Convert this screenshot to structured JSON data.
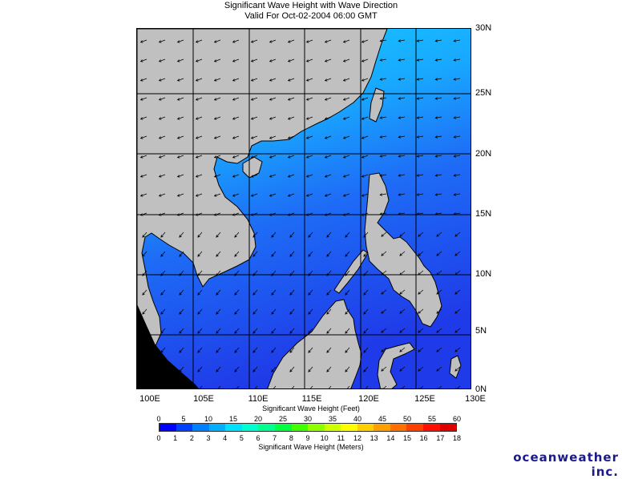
{
  "header": {
    "title": "Significant Wave Height with Wave Direction",
    "valid": "Valid For Oct-02-2004 06:00 GMT"
  },
  "map": {
    "lon_labels": [
      "100E",
      "105E",
      "110E",
      "115E",
      "120E",
      "125E",
      "130E"
    ],
    "lat_labels": [
      "30N",
      "25N",
      "20N",
      "15N",
      "10N",
      "5N",
      "0N"
    ],
    "colors": {
      "land": "#c0c0c0",
      "deep_sea": "#1f3cf0",
      "mid_sea": "#1e78ff",
      "high_sea": "#19c8ff",
      "coast": "#000000",
      "grid": "#000000"
    }
  },
  "legend": {
    "feet_caption": "Significant Wave Height (Feet)",
    "meters_caption": "Significant Wave Height (Meters)",
    "feet_ticks": [
      "0",
      "5",
      "10",
      "15",
      "20",
      "25",
      "30",
      "35",
      "40",
      "45",
      "50",
      "55",
      "60"
    ],
    "meter_ticks": [
      "0",
      "1",
      "2",
      "3",
      "4",
      "5",
      "6",
      "7",
      "8",
      "9",
      "10",
      "11",
      "12",
      "13",
      "14",
      "15",
      "16",
      "17",
      "18"
    ],
    "colorbar": [
      "#0000ff",
      "#0040ff",
      "#0080ff",
      "#00b0ff",
      "#00e0ff",
      "#00ffd0",
      "#00ff90",
      "#00ff40",
      "#40ff00",
      "#90ff00",
      "#d0ff00",
      "#ffff00",
      "#ffd000",
      "#ffa000",
      "#ff7000",
      "#ff4000",
      "#ff1000",
      "#e00000"
    ]
  },
  "brand": "oceanweather inc."
}
